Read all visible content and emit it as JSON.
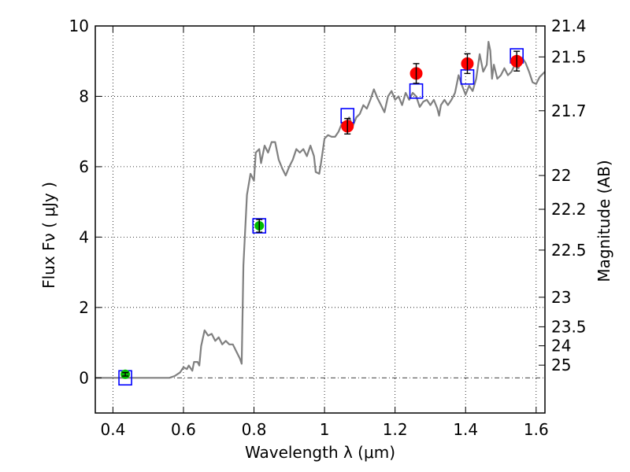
{
  "chart_data": {
    "type": "scatter",
    "xlabel": "Wavelength  λ (μm)",
    "ylabel": "Flux  Fν  ( μJy )",
    "ylabel_right": "Magnitude (AB)",
    "xlim": [
      0.35,
      1.625
    ],
    "ylim": [
      -1,
      10
    ],
    "x_ticks": [
      0.4,
      0.6,
      0.8,
      1.0,
      1.2,
      1.4,
      1.6
    ],
    "x_tick_labels": [
      "0.4",
      "0.6",
      "0.8",
      "1",
      "1.2",
      "1.4",
      "1.6"
    ],
    "y_ticks": [
      0,
      2,
      4,
      6,
      8,
      10
    ],
    "y_tick_labels": [
      "0",
      "2",
      "4",
      "6",
      "8",
      "10"
    ],
    "right_ticks": [
      {
        "label": "21.4",
        "flux": 10.0
      },
      {
        "label": "21.5",
        "flux": 9.12
      },
      {
        "label": "21.7",
        "flux": 7.59
      },
      {
        "label": "22",
        "flux": 5.75
      },
      {
        "label": "22.2",
        "flux": 4.79
      },
      {
        "label": "22.5",
        "flux": 3.63
      },
      {
        "label": "23",
        "flux": 2.29
      },
      {
        "label": "23.5",
        "flux": 1.45
      },
      {
        "label": "24",
        "flux": 0.91
      },
      {
        "label": "25",
        "flux": 0.36
      }
    ],
    "grid": true,
    "zero_line": true,
    "colors": {
      "spectrum": "#808080",
      "observed_red": "#ff0000",
      "observed_green": "#00bb00",
      "model_box": "#0000ff",
      "error_bar": "#000000"
    },
    "series": [
      {
        "kind": "line",
        "points": [
          [
            0.35,
            0
          ],
          [
            0.56,
            0
          ],
          [
            0.575,
            0.05
          ],
          [
            0.59,
            0.15
          ],
          [
            0.6,
            0.3
          ],
          [
            0.61,
            0.25
          ],
          [
            0.615,
            0.35
          ],
          [
            0.625,
            0.2
          ],
          [
            0.63,
            0.45
          ],
          [
            0.64,
            0.45
          ],
          [
            0.645,
            0.35
          ],
          [
            0.65,
            0.9
          ],
          [
            0.66,
            1.35
          ],
          [
            0.67,
            1.2
          ],
          [
            0.68,
            1.25
          ],
          [
            0.69,
            1.05
          ],
          [
            0.7,
            1.15
          ],
          [
            0.71,
            0.95
          ],
          [
            0.72,
            1.05
          ],
          [
            0.73,
            0.95
          ],
          [
            0.74,
            0.95
          ],
          [
            0.75,
            0.75
          ],
          [
            0.76,
            0.55
          ],
          [
            0.765,
            0.4
          ],
          [
            0.77,
            3.2
          ],
          [
            0.78,
            5.2
          ],
          [
            0.79,
            5.8
          ],
          [
            0.8,
            5.6
          ],
          [
            0.805,
            6.4
          ],
          [
            0.815,
            6.5
          ],
          [
            0.82,
            6.1
          ],
          [
            0.83,
            6.6
          ],
          [
            0.84,
            6.4
          ],
          [
            0.85,
            6.7
          ],
          [
            0.86,
            6.7
          ],
          [
            0.87,
            6.2
          ],
          [
            0.88,
            5.95
          ],
          [
            0.89,
            5.75
          ],
          [
            0.9,
            6.0
          ],
          [
            0.91,
            6.2
          ],
          [
            0.92,
            6.5
          ],
          [
            0.93,
            6.4
          ],
          [
            0.94,
            6.5
          ],
          [
            0.95,
            6.3
          ],
          [
            0.96,
            6.6
          ],
          [
            0.97,
            6.3
          ],
          [
            0.975,
            5.85
          ],
          [
            0.985,
            5.8
          ],
          [
            0.99,
            6.1
          ],
          [
            1.0,
            6.8
          ],
          [
            1.01,
            6.9
          ],
          [
            1.02,
            6.85
          ],
          [
            1.03,
            6.85
          ],
          [
            1.04,
            7.0
          ],
          [
            1.05,
            7.25
          ],
          [
            1.06,
            7.25
          ],
          [
            1.07,
            7.4
          ],
          [
            1.08,
            7.15
          ],
          [
            1.09,
            7.4
          ],
          [
            1.1,
            7.5
          ],
          [
            1.11,
            7.75
          ],
          [
            1.12,
            7.65
          ],
          [
            1.13,
            7.9
          ],
          [
            1.14,
            8.2
          ],
          [
            1.15,
            7.95
          ],
          [
            1.16,
            7.75
          ],
          [
            1.17,
            7.55
          ],
          [
            1.18,
            8.0
          ],
          [
            1.19,
            8.15
          ],
          [
            1.2,
            7.9
          ],
          [
            1.21,
            8.0
          ],
          [
            1.22,
            7.75
          ],
          [
            1.23,
            8.1
          ],
          [
            1.24,
            7.9
          ],
          [
            1.25,
            8.1
          ],
          [
            1.26,
            8.0
          ],
          [
            1.27,
            7.7
          ],
          [
            1.28,
            7.85
          ],
          [
            1.29,
            7.9
          ],
          [
            1.3,
            7.75
          ],
          [
            1.31,
            7.9
          ],
          [
            1.32,
            7.65
          ],
          [
            1.325,
            7.45
          ],
          [
            1.33,
            7.75
          ],
          [
            1.34,
            7.9
          ],
          [
            1.35,
            7.75
          ],
          [
            1.36,
            7.9
          ],
          [
            1.37,
            8.1
          ],
          [
            1.38,
            8.6
          ],
          [
            1.39,
            8.3
          ],
          [
            1.4,
            8.05
          ],
          [
            1.41,
            8.3
          ],
          [
            1.42,
            8.15
          ],
          [
            1.43,
            8.5
          ],
          [
            1.44,
            9.2
          ],
          [
            1.45,
            8.7
          ],
          [
            1.46,
            8.9
          ],
          [
            1.465,
            9.55
          ],
          [
            1.47,
            9.3
          ],
          [
            1.475,
            8.5
          ],
          [
            1.48,
            8.9
          ],
          [
            1.49,
            8.5
          ],
          [
            1.5,
            8.6
          ],
          [
            1.51,
            8.8
          ],
          [
            1.52,
            8.6
          ],
          [
            1.53,
            8.7
          ],
          [
            1.54,
            8.9
          ],
          [
            1.55,
            8.8
          ],
          [
            1.56,
            9.1
          ],
          [
            1.57,
            8.95
          ],
          [
            1.58,
            8.7
          ],
          [
            1.59,
            8.4
          ],
          [
            1.6,
            8.35
          ],
          [
            1.61,
            8.55
          ],
          [
            1.625,
            8.7
          ]
        ]
      },
      {
        "kind": "points-red",
        "points": [
          {
            "x": 1.065,
            "y": 7.15,
            "err": 0.22
          },
          {
            "x": 1.26,
            "y": 8.65,
            "err": 0.28
          },
          {
            "x": 1.405,
            "y": 8.93,
            "err": 0.28
          },
          {
            "x": 1.545,
            "y": 9.0,
            "err": 0.28
          }
        ]
      },
      {
        "kind": "points-green",
        "points": [
          {
            "x": 0.435,
            "y": 0.1,
            "err": 0.05
          },
          {
            "x": 0.815,
            "y": 4.32,
            "err": 0.18
          }
        ]
      },
      {
        "kind": "boxes",
        "points": [
          {
            "x": 0.435,
            "y": 0.0
          },
          {
            "x": 0.815,
            "y": 4.32
          },
          {
            "x": 1.065,
            "y": 7.45
          },
          {
            "x": 1.26,
            "y": 8.15
          },
          {
            "x": 1.405,
            "y": 8.55
          },
          {
            "x": 1.545,
            "y": 9.15
          }
        ]
      }
    ]
  }
}
